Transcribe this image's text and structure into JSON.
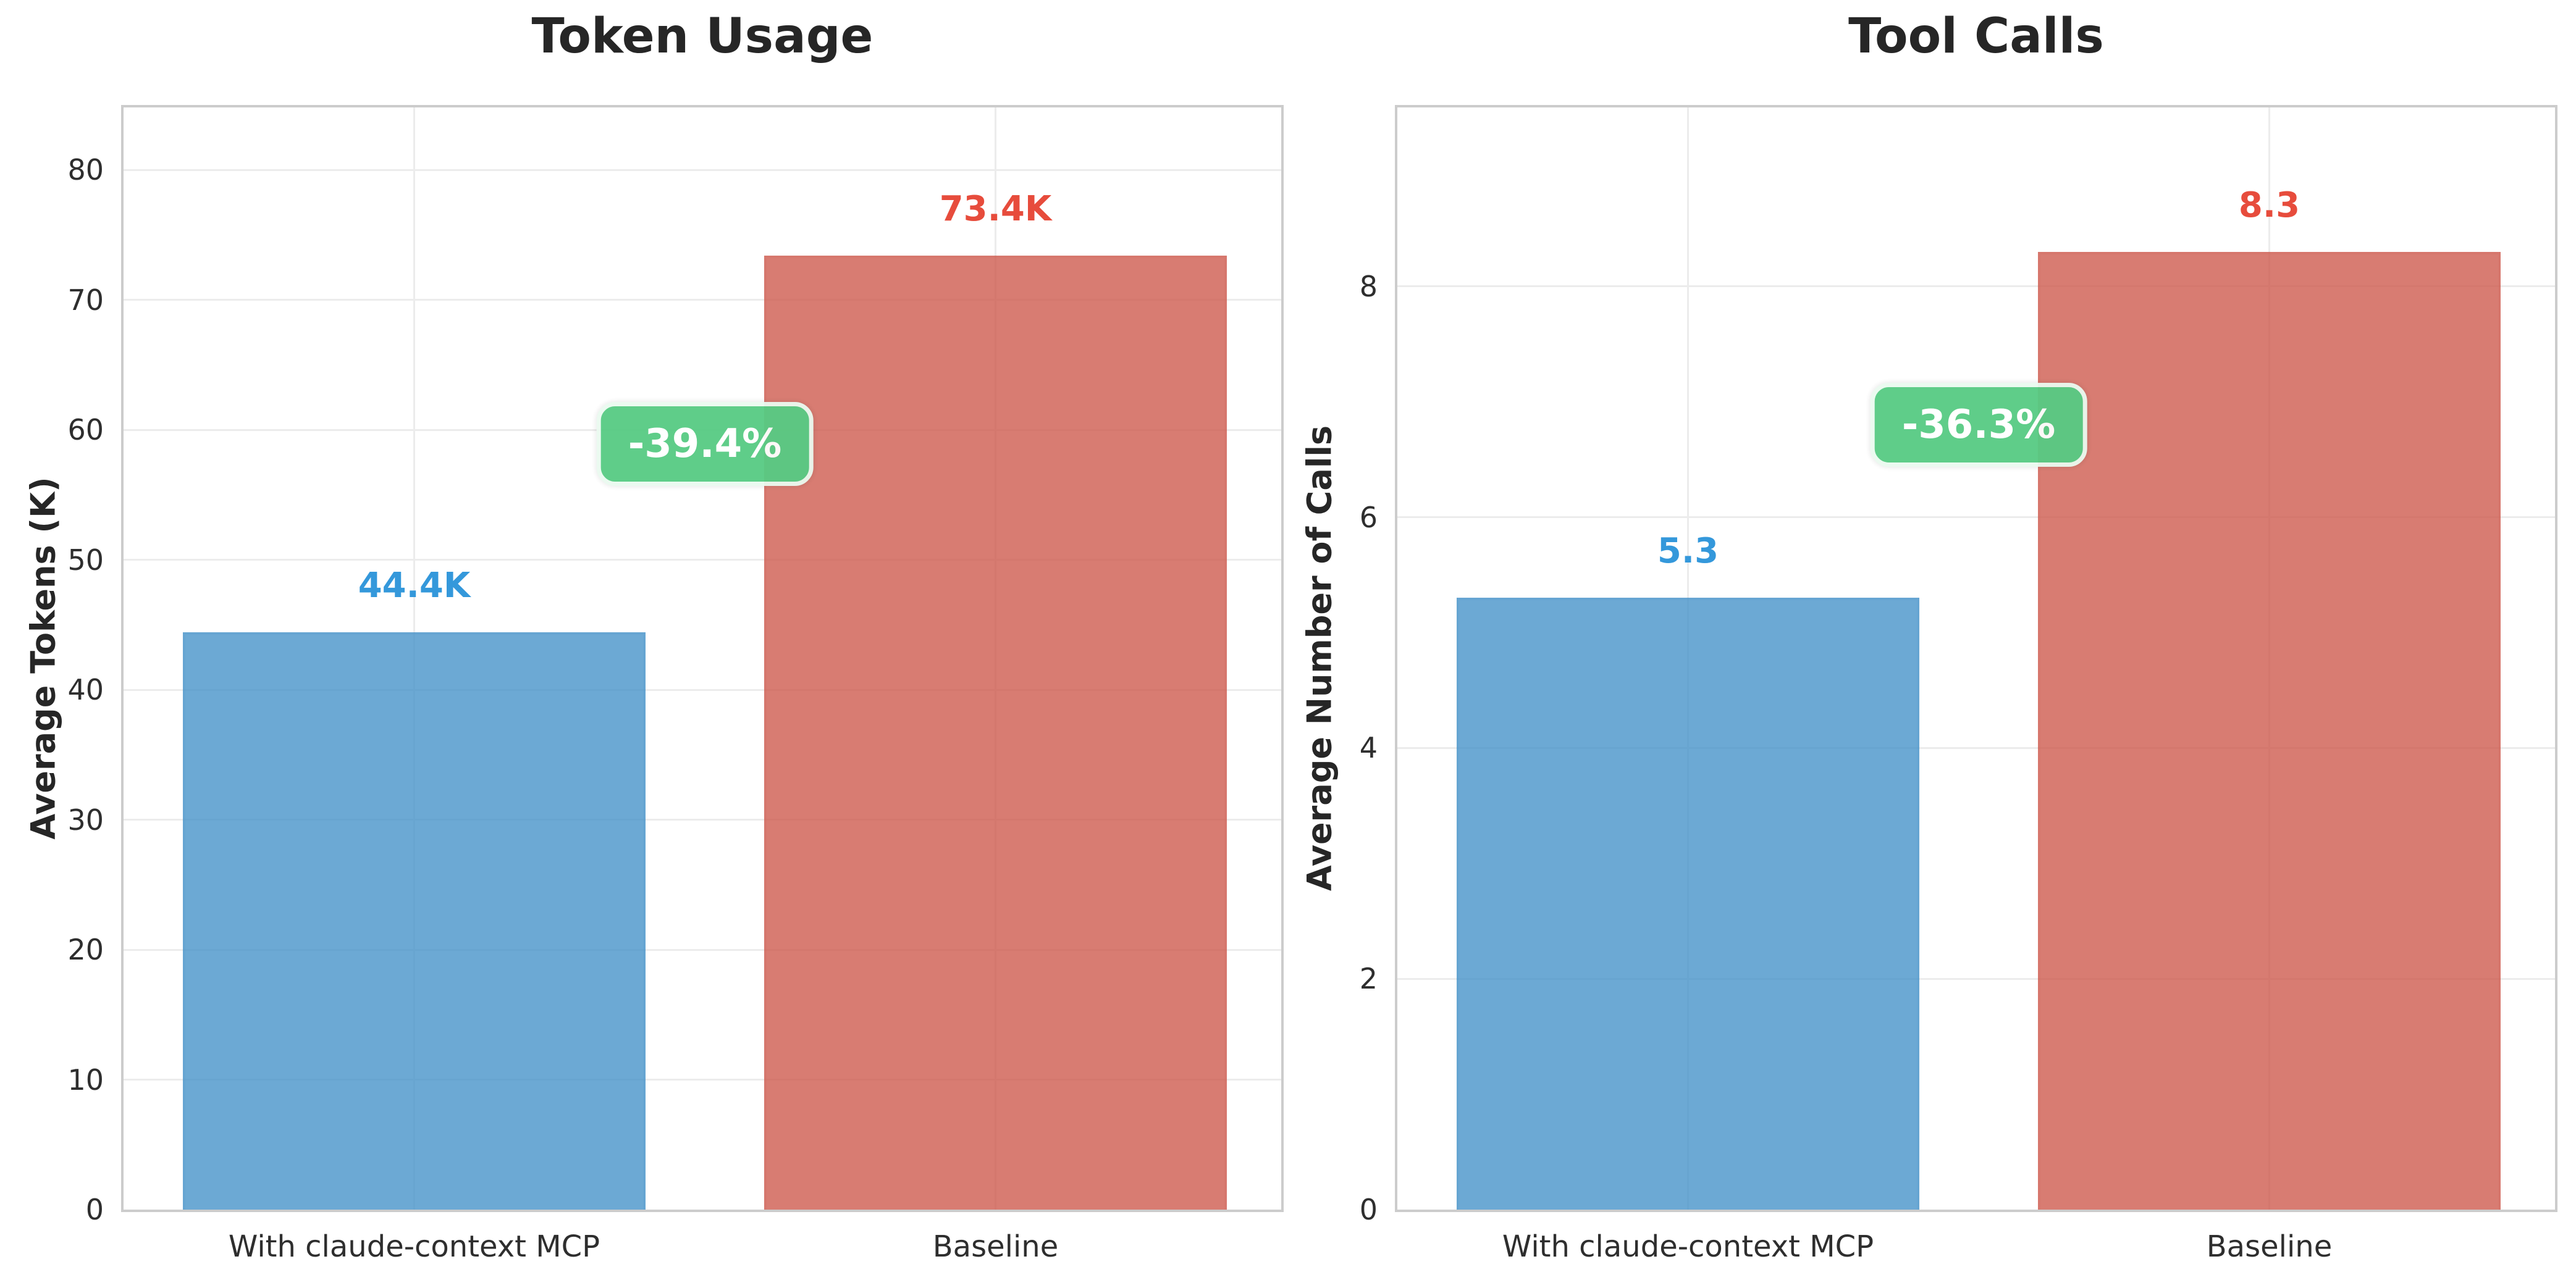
{
  "colors": {
    "bar_blue_fill": "rgba(71,147,201,0.8)",
    "bar_blue_edge": "rgba(71,147,201,0.15)",
    "bar_red_fill": "rgba(206,91,79,0.8)",
    "bar_red_edge": "rgba(206,91,79,0.15)",
    "value_label_blue": "#3498db",
    "value_label_red": "#e74c3c",
    "badge_background": "#57cb83",
    "badge_text": "#ffffff",
    "grid": "#ececec",
    "spine": "#cccccc",
    "axis_text": "#2e2e2e",
    "title_text": "#262626"
  },
  "chart_data": [
    {
      "type": "bar",
      "title": "Token Usage",
      "ylabel": "Average Tokens (K)",
      "xlabel": "",
      "categories": [
        "With claude-context MCP",
        "Baseline"
      ],
      "values": [
        44.4,
        73.4
      ],
      "value_labels": [
        "44.4K",
        "73.4K"
      ],
      "series_colors": [
        "blue",
        "red"
      ],
      "annotation": "-39.4%",
      "yticks": [
        0,
        10,
        20,
        30,
        40,
        50,
        60,
        70,
        80
      ],
      "ylim": [
        0,
        84.8
      ],
      "grid": true,
      "legend_position": "none"
    },
    {
      "type": "bar",
      "title": "Tool Calls",
      "ylabel": "Average Number of Calls",
      "xlabel": "",
      "categories": [
        "With claude-context MCP",
        "Baseline"
      ],
      "values": [
        5.3,
        8.3
      ],
      "value_labels": [
        "5.3",
        "8.3"
      ],
      "series_colors": [
        "blue",
        "red"
      ],
      "annotation": "-36.3%",
      "yticks": [
        0,
        2,
        4,
        6,
        8
      ],
      "ylim": [
        0,
        9.55
      ],
      "grid": true,
      "legend_position": "none"
    }
  ]
}
